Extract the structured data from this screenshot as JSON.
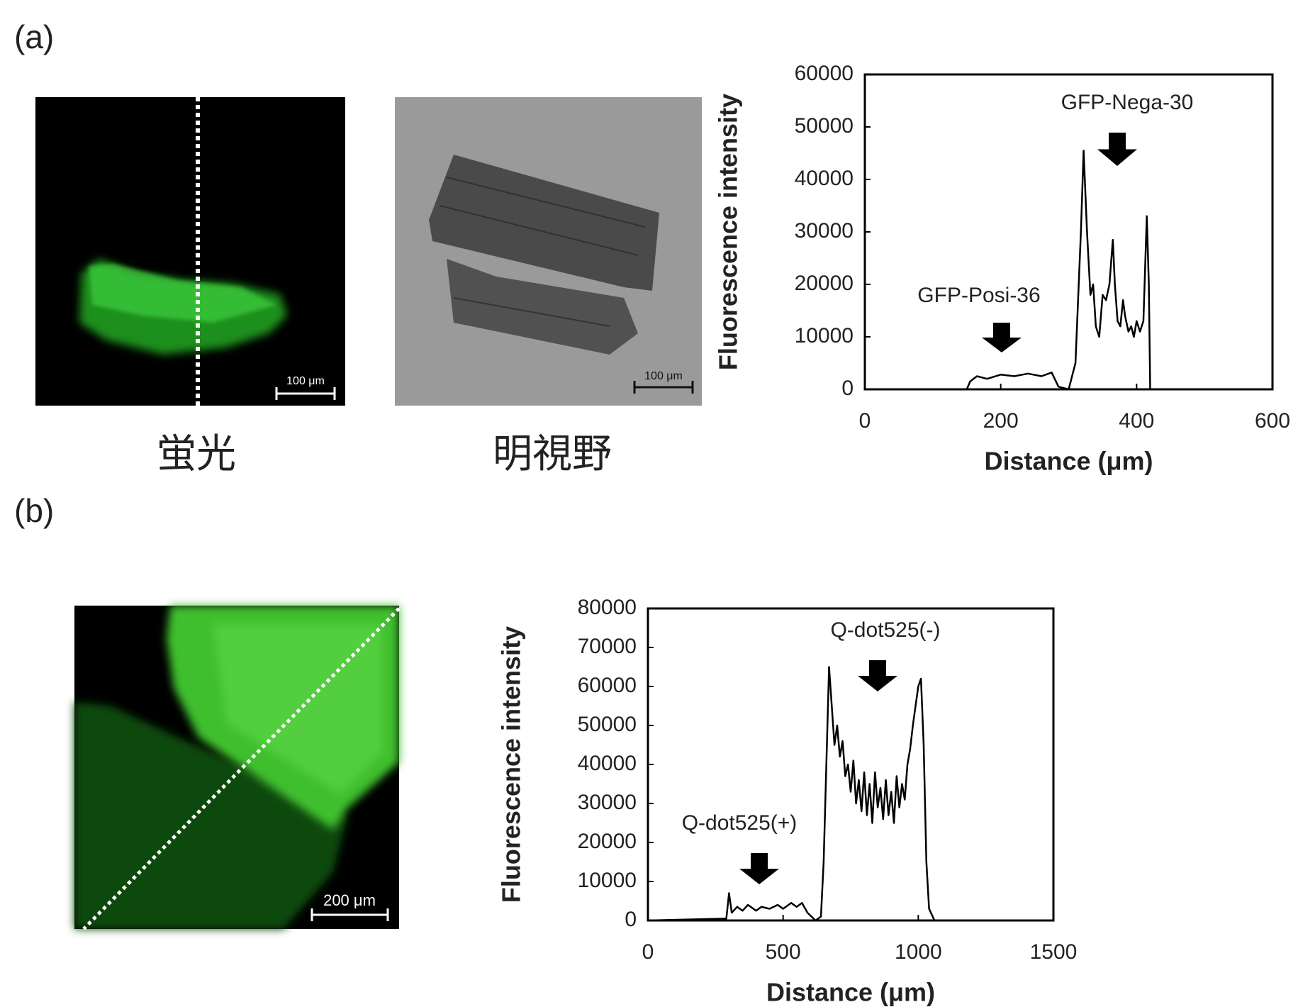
{
  "panels": [
    {
      "label": "(a)",
      "images": [
        {
          "caption": "蛍光",
          "scale_bar": "100 μm"
        },
        {
          "caption": "明視野",
          "scale_bar": "100 μm"
        }
      ]
    },
    {
      "label": "(b)",
      "images": [
        {
          "scale_bar": "200 μm"
        }
      ]
    }
  ],
  "chart_data": [
    {
      "type": "line",
      "color": "#000000",
      "x_label": "Distance (μm)",
      "y_label": "Fluorescence intensity",
      "annotations": [
        "GFP-Posi-36",
        "GFP-Nega-30"
      ],
      "xlim": [
        0,
        600
      ],
      "ylim": [
        0,
        60000
      ],
      "xticks": [
        0,
        200,
        400,
        600
      ],
      "yticks": [
        0,
        10000,
        20000,
        30000,
        40000,
        50000,
        60000
      ],
      "x": [
        0,
        150,
        155,
        165,
        180,
        200,
        220,
        240,
        260,
        275,
        285,
        300,
        310,
        318,
        322,
        327,
        332,
        336,
        340,
        345,
        350,
        355,
        360,
        365,
        368,
        372,
        376,
        380,
        383,
        388,
        392,
        396,
        400,
        405,
        410,
        415,
        418,
        420
      ],
      "values": [
        0,
        0,
        1500,
        2500,
        2000,
        2800,
        2500,
        3000,
        2500,
        3200,
        500,
        0,
        5000,
        30000,
        45500,
        30000,
        18000,
        20000,
        12000,
        10000,
        18000,
        17000,
        20000,
        28500,
        20000,
        13000,
        12000,
        17000,
        14000,
        11000,
        12000,
        10000,
        13000,
        11000,
        13000,
        33000,
        20000,
        0
      ]
    },
    {
      "type": "line",
      "color": "#000000",
      "x_label": "Distance (μm)",
      "y_label": "Fluorescence intensity",
      "annotations": [
        "Q-dot525(+)",
        "Q-dot525(-)"
      ],
      "xlim": [
        0,
        1500
      ],
      "ylim": [
        0,
        80000
      ],
      "xticks": [
        0,
        500,
        1000,
        1500
      ],
      "yticks": [
        0,
        10000,
        20000,
        30000,
        40000,
        50000,
        60000,
        70000,
        80000
      ],
      "x": [
        0,
        290,
        300,
        310,
        330,
        350,
        370,
        400,
        420,
        450,
        480,
        500,
        530,
        550,
        570,
        590,
        620,
        640,
        650,
        660,
        670,
        680,
        690,
        700,
        710,
        720,
        730,
        740,
        750,
        760,
        770,
        780,
        790,
        800,
        810,
        820,
        830,
        840,
        850,
        860,
        870,
        880,
        890,
        900,
        910,
        920,
        930,
        940,
        950,
        960,
        970,
        980,
        990,
        1000,
        1010,
        1020,
        1030,
        1040,
        1060,
        1150
      ],
      "values": [
        0,
        500,
        7000,
        2000,
        3500,
        2500,
        4000,
        2500,
        3500,
        3000,
        4000,
        3000,
        4500,
        3500,
        4500,
        2000,
        0,
        1000,
        15000,
        40000,
        65000,
        55000,
        45000,
        50000,
        42000,
        46000,
        37000,
        40000,
        33000,
        41000,
        30000,
        36000,
        28000,
        38000,
        27000,
        35000,
        25000,
        38000,
        29000,
        34000,
        26000,
        36000,
        27000,
        33000,
        25000,
        37000,
        29000,
        35000,
        31000,
        40000,
        44000,
        50000,
        55000,
        60000,
        62000,
        45000,
        15000,
        3000,
        0,
        0
      ]
    }
  ]
}
